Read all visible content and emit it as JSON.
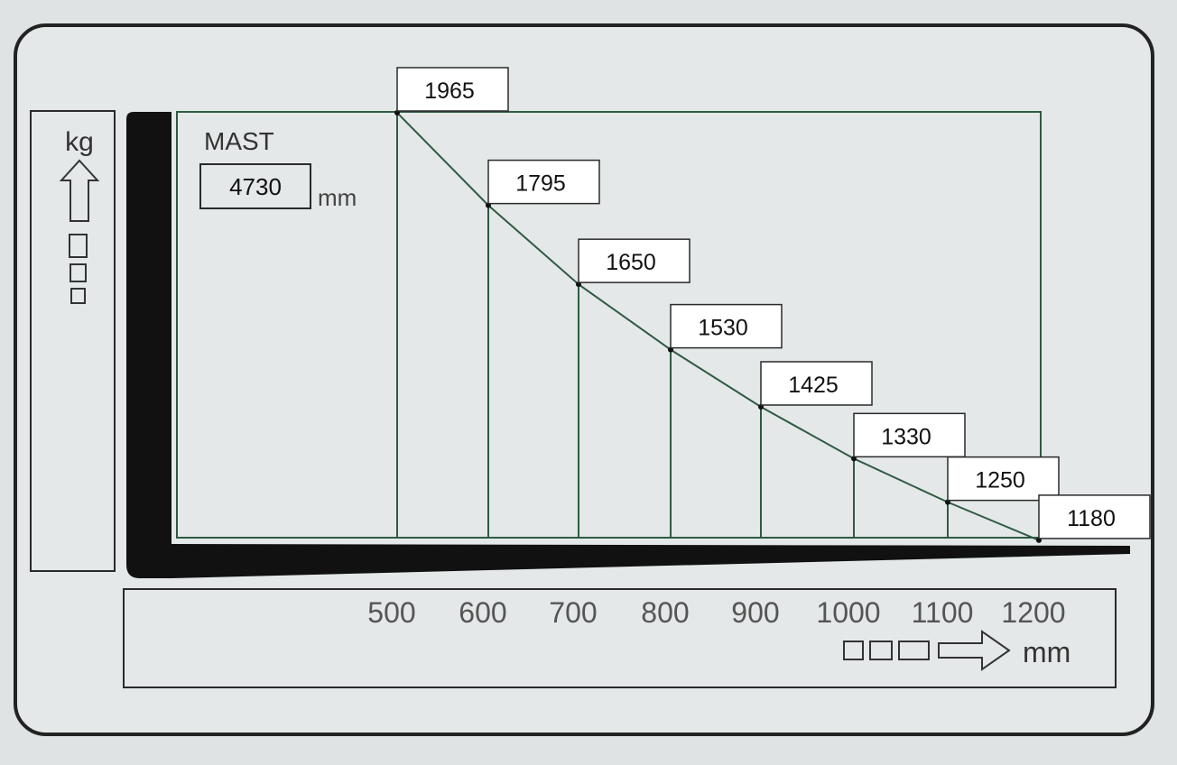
{
  "chart_data": {
    "type": "line",
    "mast_label": "MAST",
    "mast_height": "4730",
    "mast_unit": "mm",
    "y_unit": "kg",
    "x_unit": "mm",
    "x": [
      500,
      600,
      700,
      800,
      900,
      1000,
      1100,
      1200
    ],
    "x_tick_labels": [
      "500",
      "600",
      "700",
      "800",
      "900",
      "1000",
      "1100",
      "1200"
    ],
    "values": [
      1965,
      1795,
      1650,
      1530,
      1425,
      1330,
      1250,
      1180
    ],
    "value_labels": [
      "1965",
      "1795",
      "1650",
      "1530",
      "1425",
      "1330",
      "1250",
      "1180"
    ],
    "colors": {
      "grid": "#2f5a44",
      "frame": "#2a2a2a",
      "fork": "#111111",
      "text": "#333333",
      "label_box": "#ffffff"
    }
  }
}
